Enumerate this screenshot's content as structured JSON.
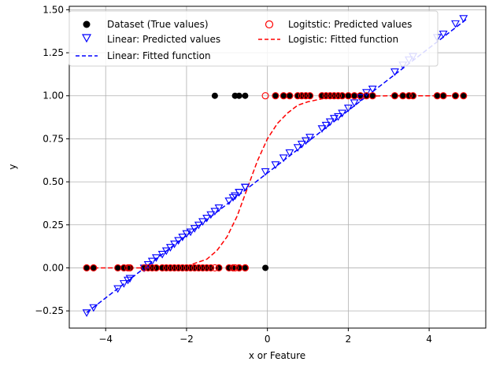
{
  "chart_data": {
    "type": "scatter",
    "xlabel": "x or Feature",
    "ylabel": "y",
    "xlim": [
      -4.9,
      5.4
    ],
    "ylim": [
      -0.35,
      1.52
    ],
    "xticks": [
      -4,
      -2,
      0,
      2,
      4
    ],
    "xtick_labels": [
      "−4",
      "−2",
      "0",
      "2",
      "4"
    ],
    "yticks": [
      -0.25,
      0,
      0.25,
      0.5,
      0.75,
      1.0,
      1.25,
      1.5
    ],
    "ytick_labels": [
      "−0.25",
      "0.00",
      "0.25",
      "0.50",
      "0.75",
      "1.00",
      "1.25",
      "1.50"
    ],
    "grid": true,
    "legend_position": "top",
    "x": [
      -4.47,
      -4.3,
      -3.7,
      -3.55,
      -3.45,
      -3.4,
      -3.05,
      -2.95,
      -2.85,
      -2.75,
      -2.6,
      -2.5,
      -2.4,
      -2.3,
      -2.2,
      -2.1,
      -2.0,
      -1.9,
      -1.8,
      -1.7,
      -1.6,
      -1.5,
      -1.4,
      -1.2,
      -0.95,
      -0.85,
      -0.7,
      -0.55,
      -0.05,
      -1.3,
      -0.8,
      -0.7,
      -0.55,
      0.2,
      0.4,
      0.55,
      0.75,
      0.85,
      0.95,
      1.05,
      1.35,
      1.45,
      1.55,
      1.65,
      1.75,
      1.85,
      2.0,
      2.15,
      2.3,
      2.45,
      2.6,
      3.15,
      3.35,
      3.5,
      3.6,
      4.2,
      4.35,
      4.65,
      4.85
    ],
    "series": [
      {
        "name": "Dataset (True values)",
        "marker": "filled-circle",
        "color": "#000000",
        "values": [
          0,
          0,
          0,
          0,
          0,
          0,
          0,
          0,
          0,
          0,
          0,
          0,
          0,
          0,
          0,
          0,
          0,
          0,
          0,
          0,
          0,
          0,
          0,
          0,
          0,
          0,
          0,
          0,
          0,
          1,
          1,
          1,
          1,
          1,
          1,
          1,
          1,
          1,
          1,
          1,
          1,
          1,
          1,
          1,
          1,
          1,
          1,
          1,
          1,
          1,
          1,
          1,
          1,
          1,
          1,
          1,
          1,
          1,
          1
        ]
      },
      {
        "name": "Linear: Predicted values",
        "marker": "hollow-triangle-down",
        "color": "#0000ff",
        "values": [
          -0.26,
          -0.23,
          -0.12,
          -0.09,
          -0.07,
          -0.06,
          0.0,
          0.02,
          0.04,
          0.06,
          0.08,
          0.1,
          0.12,
          0.14,
          0.16,
          0.18,
          0.2,
          0.21,
          0.23,
          0.25,
          0.27,
          0.29,
          0.31,
          0.35,
          0.39,
          0.41,
          0.44,
          0.47,
          0.56,
          0.33,
          0.42,
          0.44,
          0.47,
          0.6,
          0.64,
          0.67,
          0.7,
          0.72,
          0.74,
          0.76,
          0.81,
          0.83,
          0.85,
          0.87,
          0.88,
          0.9,
          0.93,
          0.96,
          0.99,
          1.02,
          1.04,
          1.14,
          1.18,
          1.21,
          1.23,
          1.34,
          1.36,
          1.42,
          1.45
        ]
      },
      {
        "name": "Logitstic: Predicted values",
        "marker": "hollow-circle",
        "color": "#ff0000",
        "values": [
          0,
          0,
          0,
          0,
          0,
          0,
          0,
          0,
          0,
          0,
          0,
          0,
          0,
          0,
          0,
          0,
          0,
          0,
          0,
          0,
          0,
          0,
          0,
          0,
          0,
          0,
          0,
          0,
          1,
          0,
          0,
          0,
          0,
          1,
          1,
          1,
          1,
          1,
          1,
          1,
          1,
          1,
          1,
          1,
          1,
          1,
          1,
          1,
          1,
          1,
          1,
          1,
          1,
          1,
          1,
          1,
          1,
          1,
          1
        ]
      },
      {
        "name": "Linear: Fitted function",
        "style": "dashed-line",
        "color": "#0000ff",
        "x": [
          -4.47,
          4.95
        ],
        "values": [
          -0.26,
          1.45
        ]
      },
      {
        "name": "Logistic: Fitted function",
        "style": "dashed-line",
        "color": "#ff0000",
        "x": [
          -4.47,
          -3.0,
          -2.5,
          -2.0,
          -1.5,
          -1.25,
          -1.0,
          -0.75,
          -0.5,
          -0.25,
          0.0,
          0.25,
          0.5,
          0.75,
          1.0,
          1.5,
          2.0,
          3.0,
          4.0,
          4.95
        ],
        "values": [
          0.0,
          0.0,
          0.003,
          0.01,
          0.05,
          0.1,
          0.18,
          0.3,
          0.46,
          0.62,
          0.75,
          0.84,
          0.9,
          0.945,
          0.965,
          0.99,
          0.996,
          1.0,
          1.0,
          1.0
        ]
      }
    ]
  }
}
